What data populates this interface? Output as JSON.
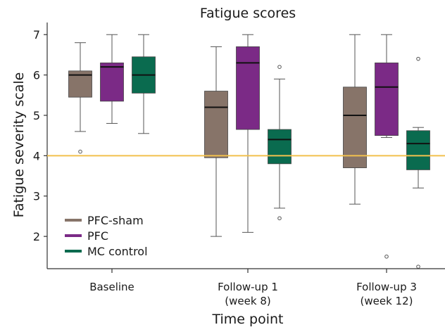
{
  "chart_data": {
    "type": "box",
    "title": "Fatigue scores",
    "xlabel": "Time point",
    "ylabel": "Fatigue severity scale",
    "ylim": [
      1.2,
      7.3
    ],
    "yticks": [
      2,
      3,
      4,
      5,
      6,
      7
    ],
    "categories": [
      [
        "Baseline"
      ],
      [
        "Follow-up 1",
        "(week 8)"
      ],
      [
        "Follow-up 3",
        "(week 12)"
      ]
    ],
    "reference_line": {
      "y": 4,
      "color": "#f2c14e"
    },
    "legend_position": "bottom-left",
    "series": [
      {
        "name": "PFC-sham",
        "color": "#877469",
        "boxes": [
          {
            "whisker_low": 4.6,
            "q1": 5.45,
            "median": 6.0,
            "q3": 6.1,
            "whisker_high": 6.8,
            "outliers": [
              4.1
            ]
          },
          {
            "whisker_low": 2.0,
            "q1": 3.95,
            "median": 5.2,
            "q3": 5.6,
            "whisker_high": 6.7,
            "outliers": []
          },
          {
            "whisker_low": 2.8,
            "q1": 3.7,
            "median": 5.0,
            "q3": 5.7,
            "whisker_high": 7.0,
            "outliers": []
          }
        ]
      },
      {
        "name": "PFC",
        "color": "#7b2a86",
        "boxes": [
          {
            "whisker_low": 4.8,
            "q1": 5.35,
            "median": 6.2,
            "q3": 6.3,
            "whisker_high": 7.0,
            "outliers": []
          },
          {
            "whisker_low": 2.1,
            "q1": 4.65,
            "median": 6.3,
            "q3": 6.7,
            "whisker_high": 7.0,
            "outliers": []
          },
          {
            "whisker_low": 4.45,
            "q1": 4.5,
            "median": 5.7,
            "q3": 6.3,
            "whisker_high": 7.0,
            "outliers": [
              1.5
            ]
          }
        ]
      },
      {
        "name": "MC control",
        "color": "#0a6b4f",
        "boxes": [
          {
            "whisker_low": 4.55,
            "q1": 5.55,
            "median": 6.0,
            "q3": 6.45,
            "whisker_high": 7.0,
            "outliers": []
          },
          {
            "whisker_low": 2.7,
            "q1": 3.8,
            "median": 4.4,
            "q3": 4.65,
            "whisker_high": 5.9,
            "outliers": [
              6.2,
              2.45
            ]
          },
          {
            "whisker_low": 3.2,
            "q1": 3.65,
            "median": 4.3,
            "q3": 4.62,
            "whisker_high": 4.7,
            "outliers": [
              6.4,
              1.25
            ]
          }
        ]
      }
    ]
  }
}
